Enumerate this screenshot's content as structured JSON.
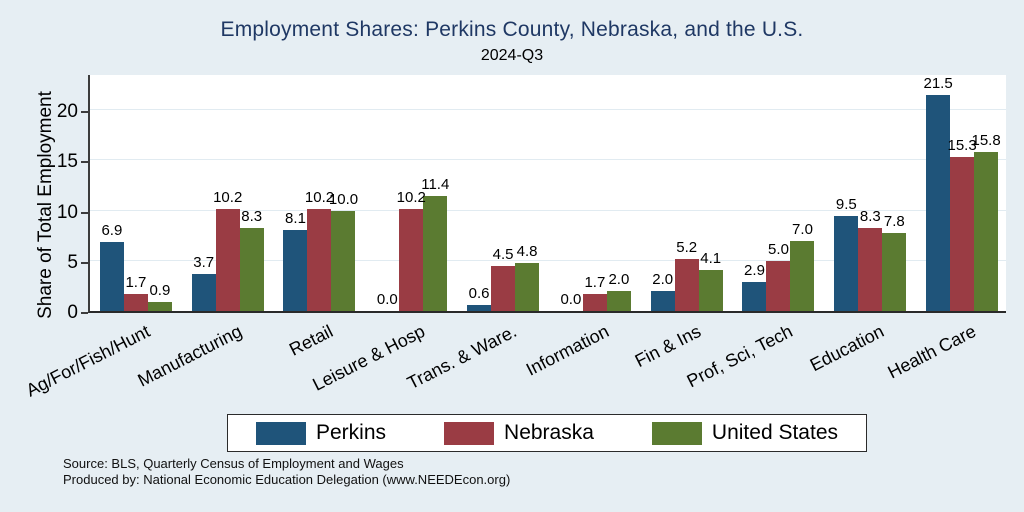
{
  "title": "Employment Shares: Perkins County, Nebraska, and the U.S.",
  "subtitle": "2024-Q3",
  "source_line1": "Source: BLS, Quarterly Census of Employment and Wages",
  "source_line2": "Produced by: National Economic Education Delegation (www.NEEDEcon.org)",
  "colors": {
    "background": "#e6eef3",
    "plot_background": "#ffffff",
    "title_text": "#1f3864",
    "gridline": "#e1ebf1",
    "axis_line": "#3c3c3c",
    "perkins_blue": "#1f547a",
    "nebraska_red": "#9a3c44",
    "us_green": "#5b7b31"
  },
  "chart_data": {
    "type": "bar",
    "title": "Employment Shares: Perkins County, Nebraska, and the U.S.",
    "subtitle": "2024-Q3",
    "xlabel": "",
    "ylabel": "Share of Total Employment",
    "ylim": [
      0,
      23.7
    ],
    "yticks": [
      0,
      5,
      10,
      15,
      20
    ],
    "grid": true,
    "legend_position": "bottom",
    "value_labels": true,
    "value_label_format": "one-decimal",
    "categories": [
      "Ag/For/Fish/Hunt",
      "Manufacturing",
      "Retail",
      "Leisure & Hosp",
      "Trans. & Ware.",
      "Information",
      "Fin & Ins",
      "Prof, Sci, Tech",
      "Education",
      "Health Care"
    ],
    "series": [
      {
        "name": "Perkins",
        "color": "#1f547a",
        "values": [
          6.9,
          3.7,
          8.1,
          0.0,
          0.6,
          0.0,
          2.0,
          2.9,
          9.5,
          21.5
        ]
      },
      {
        "name": "Nebraska",
        "color": "#9a3c44",
        "values": [
          1.7,
          10.2,
          10.2,
          10.2,
          4.5,
          1.7,
          5.2,
          5.0,
          8.3,
          15.3
        ]
      },
      {
        "name": "United States",
        "color": "#5b7b31",
        "values": [
          0.9,
          8.3,
          10.0,
          11.4,
          4.8,
          2.0,
          4.1,
          7.0,
          7.8,
          15.8
        ]
      }
    ]
  }
}
